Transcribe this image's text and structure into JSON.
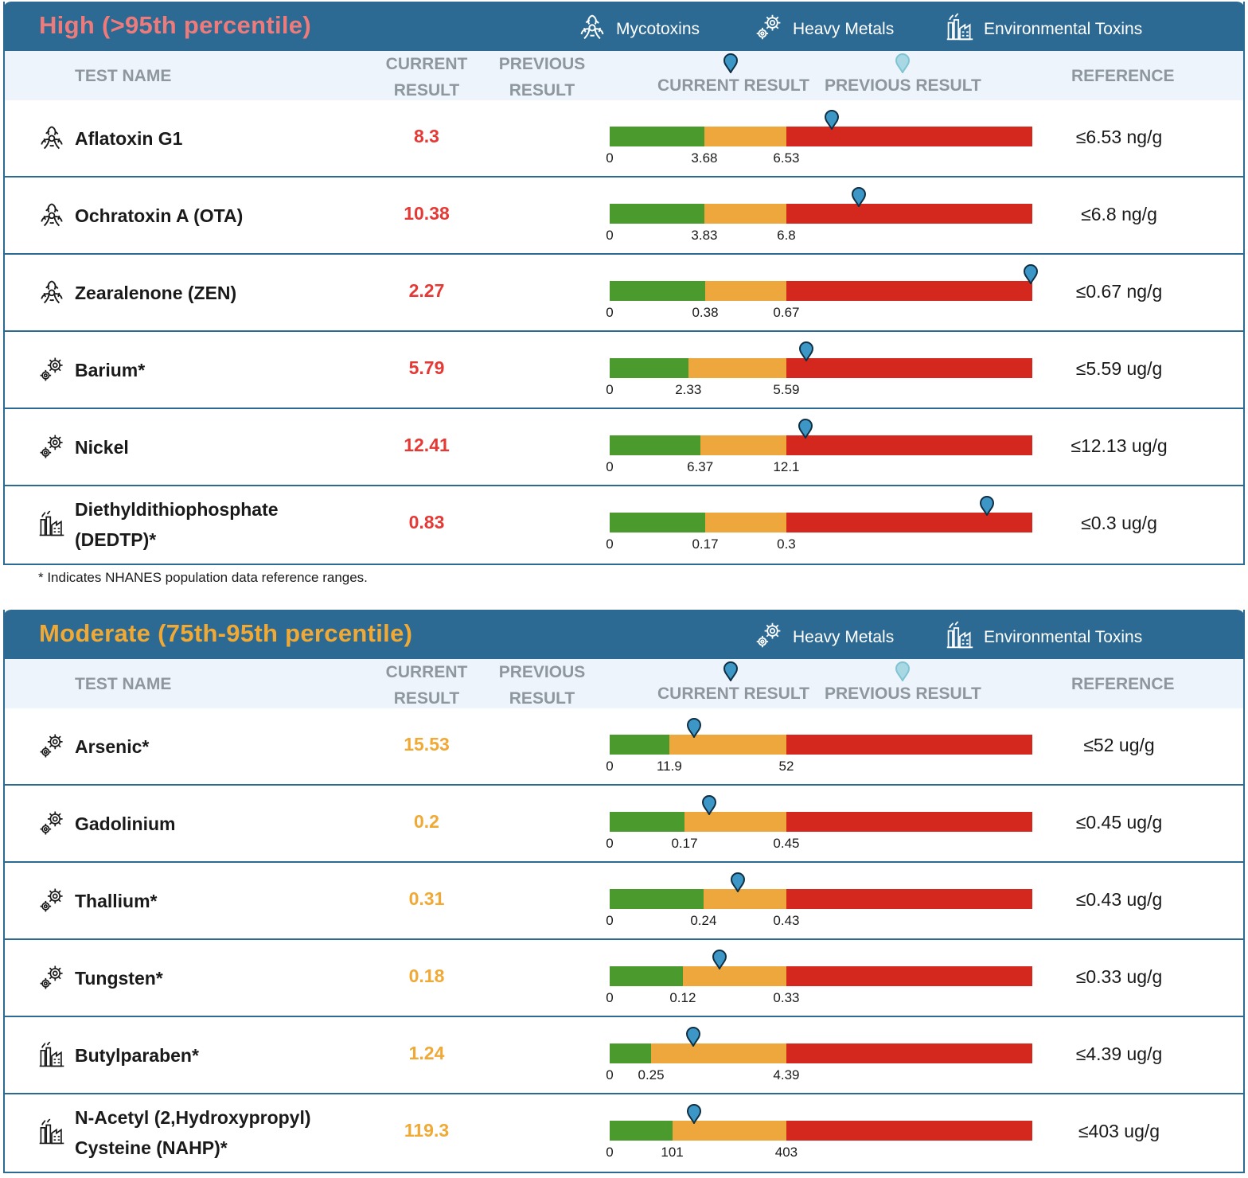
{
  "colors": {
    "banner": "#2c6a93",
    "high_title": "#ee7b7b",
    "moderate_title": "#f0a935",
    "high_value": "#e53935",
    "moderate_value": "#f0a935",
    "green": "#4a9a2e",
    "orange": "#eda73c",
    "red": "#d4281e",
    "marker": "#3d97c6",
    "marker_prev": "#a7d8e4"
  },
  "column_headers": {
    "test_name": "TEST NAME",
    "current_result_line1": "CURRENT",
    "current_result_line2": "RESULT",
    "previous_result_line1": "PREVIOUS",
    "previous_result_line2": "RESULT",
    "current_result_legend": "CURRENT RESULT",
    "previous_result_legend": "PREVIOUS RESULT",
    "reference": "REFERENCE"
  },
  "high": {
    "title": "High (>95th percentile)",
    "legend": [
      "Mycotoxins",
      "Heavy Metals",
      "Environmental Toxins"
    ],
    "rows": [
      {
        "icon": "biohazard-icon",
        "name": "Aflatoxin G1",
        "value": "8.3",
        "ref": "≤6.53 ng/g",
        "t0": "0",
        "t1": "3.68",
        "t2": "6.53",
        "g": 0.224,
        "o": 0.418,
        "m": 0.526
      },
      {
        "icon": "biohazard-icon",
        "name": "Ochratoxin A (OTA)",
        "value": "10.38",
        "ref": "≤6.8 ng/g",
        "t0": "0",
        "t1": "3.83",
        "t2": "6.8",
        "g": 0.224,
        "o": 0.418,
        "m": 0.589
      },
      {
        "icon": "biohazard-icon",
        "name": "Zearalenone (ZEN)",
        "value": "2.27",
        "ref": "≤0.67 ng/g",
        "t0": "0",
        "t1": "0.38",
        "t2": "0.67",
        "g": 0.226,
        "o": 0.418,
        "m": 0.996
      },
      {
        "icon": "gears-icon",
        "name": "Barium*",
        "value": "5.79",
        "ref": "≤5.59 ug/g",
        "t0": "0",
        "t1": "2.33",
        "t2": "5.59",
        "g": 0.186,
        "o": 0.418,
        "m": 0.465
      },
      {
        "icon": "gears-icon",
        "name": "Nickel",
        "value": "12.41",
        "ref": "≤12.13 ug/g",
        "t0": "0",
        "t1": "6.37",
        "t2": "12.1",
        "g": 0.214,
        "o": 0.418,
        "m": 0.463
      },
      {
        "icon": "factory-icon",
        "name_line1": "Diethyldithiophosphate",
        "name_line2": "(DEDTP)*",
        "value": "0.83",
        "ref": "≤0.3 ug/g",
        "t0": "0",
        "t1": "0.17",
        "t2": "0.3",
        "g": 0.226,
        "o": 0.418,
        "m": 0.893
      }
    ]
  },
  "footnote": "* Indicates NHANES population data reference ranges.",
  "moderate": {
    "title": "Moderate (75th-95th percentile)",
    "legend": [
      "Heavy Metals",
      "Environmental Toxins"
    ],
    "rows": [
      {
        "icon": "gears-icon",
        "name": "Arsenic*",
        "value": "15.53",
        "ref": "≤52 ug/g",
        "t0": "0",
        "t1": "11.9",
        "t2": "52",
        "g": 0.141,
        "o": 0.418,
        "m": 0.199
      },
      {
        "icon": "gears-icon",
        "name": "Gadolinium",
        "value": "0.2",
        "ref": "≤0.45 ug/g",
        "t0": "0",
        "t1": "0.17",
        "t2": "0.45",
        "g": 0.177,
        "o": 0.418,
        "m": 0.235
      },
      {
        "icon": "gears-icon",
        "name": "Thallium*",
        "value": "0.31",
        "ref": "≤0.43 ug/g",
        "t0": "0",
        "t1": "0.24",
        "t2": "0.43",
        "g": 0.222,
        "o": 0.418,
        "m": 0.303
      },
      {
        "icon": "gears-icon",
        "name": "Tungsten*",
        "value": "0.18",
        "ref": "≤0.33 ug/g",
        "t0": "0",
        "t1": "0.12",
        "t2": "0.33",
        "g": 0.173,
        "o": 0.418,
        "m": 0.26
      },
      {
        "icon": "factory-icon",
        "name": "Butylparaben*",
        "value": "1.24",
        "ref": "≤4.39 ug/g",
        "t0": "0",
        "t1": "0.25",
        "t2": "4.39",
        "g": 0.098,
        "o": 0.418,
        "m": 0.197
      },
      {
        "icon": "factory-icon",
        "name_line1": "N-Acetyl (2,Hydroxypropyl)",
        "name_line2": "Cysteine (NAHP)*",
        "value": "119.3",
        "ref": "≤403 ug/g",
        "t0": "0",
        "t1": "101",
        "t2": "403",
        "g": 0.148,
        "o": 0.418,
        "m": 0.199
      }
    ]
  }
}
